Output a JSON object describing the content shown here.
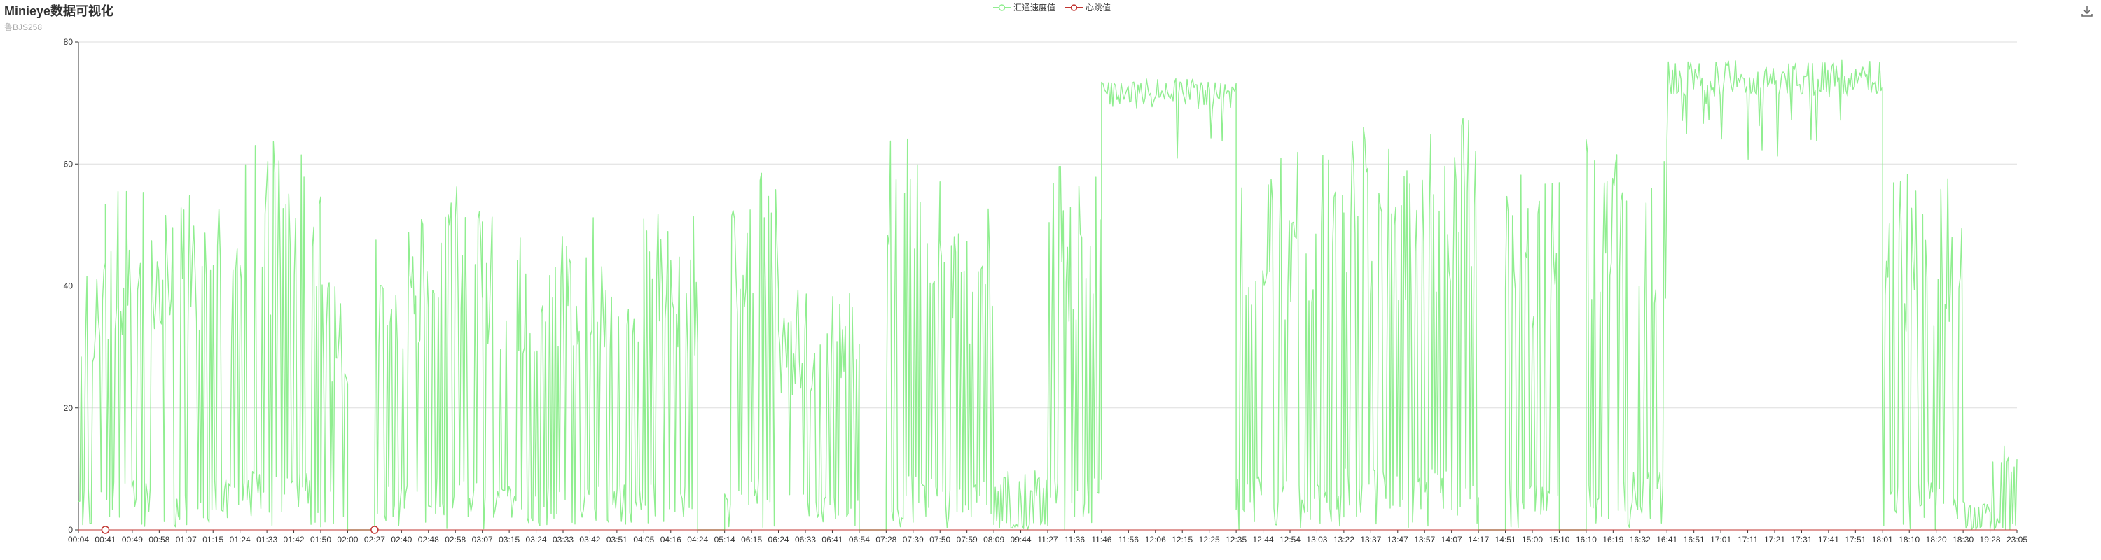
{
  "header": {
    "title": "Minieye数据可视化",
    "subtitle": "鲁BJS258"
  },
  "legend": {
    "items": [
      {
        "name": "汇通速度值",
        "color": "#90EE90"
      },
      {
        "name": "心跳值",
        "color": "#c23531"
      }
    ]
  },
  "toolbox": {
    "icon": "download-icon"
  },
  "chart_data": {
    "type": "line",
    "title": "Minieye数据可视化",
    "subtitle": "鲁BJS258",
    "ylim": [
      0,
      80
    ],
    "y_ticks": [
      0,
      20,
      40,
      60,
      80
    ],
    "grid": true,
    "legend_position": "top-center",
    "x_ticks": [
      "00:04",
      "00:41",
      "00:49",
      "00:58",
      "01:07",
      "01:15",
      "01:24",
      "01:33",
      "01:42",
      "01:50",
      "02:00",
      "02:27",
      "02:40",
      "02:48",
      "02:58",
      "03:07",
      "03:15",
      "03:24",
      "03:33",
      "03:42",
      "03:51",
      "04:05",
      "04:16",
      "04:24",
      "05:14",
      "06:15",
      "06:24",
      "06:33",
      "06:41",
      "06:54",
      "07:28",
      "07:39",
      "07:50",
      "07:59",
      "08:09",
      "09:44",
      "11:27",
      "11:36",
      "11:46",
      "11:56",
      "12:06",
      "12:15",
      "12:25",
      "12:35",
      "12:44",
      "12:54",
      "13:03",
      "13:22",
      "13:37",
      "13:47",
      "13:57",
      "14:07",
      "14:17",
      "14:51",
      "15:00",
      "15:10",
      "16:10",
      "16:19",
      "16:32",
      "16:41",
      "16:51",
      "17:01",
      "17:11",
      "17:21",
      "17:31",
      "17:41",
      "17:51",
      "18:01",
      "18:10",
      "18:20",
      "18:30",
      "19:28",
      "23:05"
    ],
    "series": [
      {
        "name": "汇通速度值",
        "color": "#90EE90",
        "segments": [
          {
            "from": "00:04",
            "to": "00:41",
            "range": [
              0,
              48
            ]
          },
          {
            "from": "00:41",
            "to": "01:24",
            "range": [
              0,
              56
            ]
          },
          {
            "from": "01:24",
            "to": "01:50",
            "range": [
              0,
              64
            ]
          },
          {
            "from": "01:50",
            "to": "02:00",
            "range": [
              0,
              42
            ]
          },
          {
            "from": "02:00",
            "to": "02:27",
            "range": [
              0,
              0
            ]
          },
          {
            "from": "02:27",
            "to": "02:48",
            "range": [
              0,
              52
            ]
          },
          {
            "from": "02:48",
            "to": "03:07",
            "range": [
              0,
              57
            ]
          },
          {
            "from": "03:07",
            "to": "04:05",
            "range": [
              0,
              52
            ]
          },
          {
            "from": "04:05",
            "to": "04:24",
            "range": [
              0,
              52
            ]
          },
          {
            "from": "04:24",
            "to": "05:14",
            "range": [
              0,
              0
            ]
          },
          {
            "from": "05:14",
            "to": "06:24",
            "range": [
              0,
              59
            ]
          },
          {
            "from": "06:24",
            "to": "06:54",
            "range": [
              0,
              40
            ]
          },
          {
            "from": "06:54",
            "to": "07:28",
            "range": [
              0,
              0
            ]
          },
          {
            "from": "07:28",
            "to": "07:50",
            "range": [
              0,
              65
            ]
          },
          {
            "from": "07:50",
            "to": "08:09",
            "range": [
              0,
              53
            ]
          },
          {
            "from": "08:09",
            "to": "11:27",
            "range": [
              0,
              10
            ]
          },
          {
            "from": "11:27",
            "to": "11:46",
            "range": [
              0,
              62
            ]
          },
          {
            "from": "11:46",
            "to": "12:35",
            "range": [
              60,
              74
            ]
          },
          {
            "from": "12:35",
            "to": "13:22",
            "range": [
              0,
              62
            ]
          },
          {
            "from": "13:22",
            "to": "14:17",
            "range": [
              0,
              68
            ]
          },
          {
            "from": "14:17",
            "to": "14:51",
            "range": [
              0,
              0
            ]
          },
          {
            "from": "14:51",
            "to": "15:10",
            "range": [
              0,
              60
            ]
          },
          {
            "from": "15:10",
            "to": "16:10",
            "range": [
              0,
              0
            ]
          },
          {
            "from": "16:10",
            "to": "16:41",
            "range": [
              0,
              64
            ]
          },
          {
            "from": "16:41",
            "to": "18:01",
            "range": [
              60,
              77
            ]
          },
          {
            "from": "18:01",
            "to": "18:30",
            "range": [
              0,
              59
            ]
          },
          {
            "from": "18:30",
            "to": "19:28",
            "range": [
              0,
              5
            ]
          },
          {
            "from": "19:28",
            "to": "23:05",
            "range": [
              0,
              14
            ]
          }
        ]
      },
      {
        "name": "心跳值",
        "color": "#c23531",
        "points": [
          {
            "x": "00:41",
            "y": 0
          },
          {
            "x": "02:27",
            "y": 0
          }
        ]
      }
    ]
  }
}
